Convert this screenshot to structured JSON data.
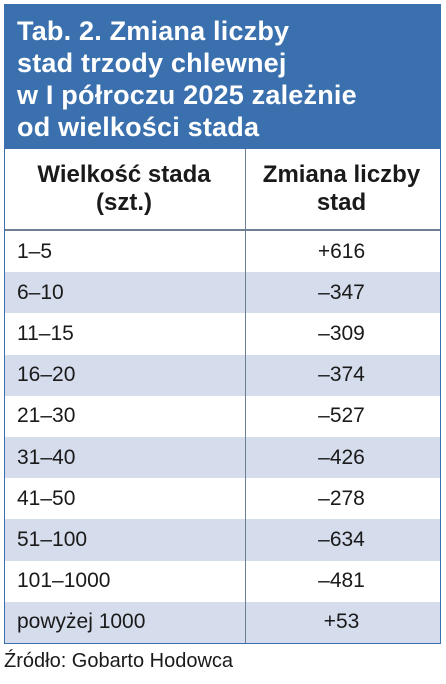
{
  "title": "Tab. 2. Zmiana liczby stad trzody chlewnej w I półroczu 2025 zależnie od wielkości stada",
  "title_lines": [
    "Tab. 2. Zmiana liczby",
    "stad trzody chlewnej",
    "w I półroczu 2025 zależnie",
    "od wielkości stada"
  ],
  "headers": {
    "col1": [
      "Wielkość stada",
      "(szt.)"
    ],
    "col2": [
      "Zmiana liczby",
      "stad"
    ]
  },
  "rows": [
    {
      "size": "1–5",
      "change": "+616"
    },
    {
      "size": "6–10",
      "change": "–347"
    },
    {
      "size": "11–15",
      "change": "–309"
    },
    {
      "size": "16–20",
      "change": "–374"
    },
    {
      "size": "21–30",
      "change": "–527"
    },
    {
      "size": "31–40",
      "change": "–426"
    },
    {
      "size": "41–50",
      "change": "–278"
    },
    {
      "size": "51–100",
      "change": "–634"
    },
    {
      "size": "101–1000",
      "change": "–481"
    },
    {
      "size": "powyżej 1000",
      "change": "+53"
    }
  ],
  "source": "Źródło: Gobarto Hodowca",
  "colors": {
    "title_bg": "#3a70ae",
    "alt_row": "#d5dcec"
  }
}
